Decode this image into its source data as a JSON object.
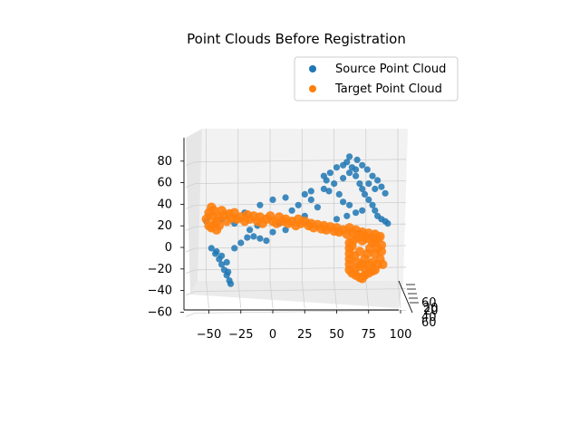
{
  "chart_data": {
    "type": "scatter",
    "projection": "3d",
    "title": "Point Clouds Before Registration",
    "legend": {
      "placement": "top-right"
    },
    "grid": true,
    "axes": {
      "x": {
        "label": "",
        "range": [
          -65,
          100
        ],
        "ticks": [
          -50,
          -25,
          0,
          25,
          50,
          75,
          100
        ]
      },
      "y": {
        "label": "",
        "range": [
          -70,
          70
        ],
        "ticks": [
          -60,
          -40,
          -20,
          0,
          20,
          40,
          60
        ]
      },
      "z": {
        "label": "",
        "range": [
          -65,
          90
        ],
        "ticks": [
          -60,
          -40,
          -20,
          0,
          20,
          40,
          60,
          80
        ]
      }
    },
    "series": [
      {
        "name": "Source Point Cloud",
        "color": "#1f77b4",
        "points": [
          [
            -48,
            0,
            -5
          ],
          [
            -45,
            0,
            -10
          ],
          [
            -42,
            0,
            -15
          ],
          [
            -40,
            0,
            -20
          ],
          [
            -38,
            0,
            -25
          ],
          [
            -36,
            0,
            -30
          ],
          [
            -34,
            0,
            -35
          ],
          [
            -33,
            0,
            -38
          ],
          [
            -35,
            0,
            -27
          ],
          [
            -30,
            0,
            -5
          ],
          [
            -25,
            0,
            0
          ],
          [
            -20,
            0,
            5
          ],
          [
            -15,
            0,
            6
          ],
          [
            -10,
            0,
            4
          ],
          [
            -5,
            0,
            2
          ],
          [
            0,
            0,
            10
          ],
          [
            5,
            0,
            18
          ],
          [
            10,
            0,
            12
          ],
          [
            15,
            0,
            30
          ],
          [
            20,
            0,
            35
          ],
          [
            25,
            0,
            25
          ],
          [
            30,
            0,
            40
          ],
          [
            35,
            0,
            33
          ],
          [
            40,
            0,
            50
          ],
          [
            42,
            0,
            58
          ],
          [
            45,
            0,
            65
          ],
          [
            50,
            0,
            70
          ],
          [
            55,
            0,
            72
          ],
          [
            58,
            0,
            75
          ],
          [
            60,
            0,
            80
          ],
          [
            62,
            0,
            70
          ],
          [
            65,
            0,
            62
          ],
          [
            68,
            0,
            55
          ],
          [
            70,
            0,
            50
          ],
          [
            72,
            0,
            45
          ],
          [
            75,
            0,
            40
          ],
          [
            78,
            0,
            35
          ],
          [
            80,
            0,
            30
          ],
          [
            82,
            0,
            25
          ],
          [
            85,
            0,
            22
          ],
          [
            88,
            0,
            20
          ],
          [
            90,
            0,
            18
          ],
          [
            60,
            0,
            35
          ],
          [
            55,
            0,
            38
          ],
          [
            52,
            0,
            45
          ],
          [
            48,
            0,
            55
          ],
          [
            44,
            0,
            48
          ],
          [
            40,
            0,
            62
          ],
          [
            66,
            0,
            77
          ],
          [
            70,
            0,
            72
          ],
          [
            74,
            0,
            68
          ],
          [
            78,
            0,
            62
          ],
          [
            82,
            0,
            58
          ],
          [
            85,
            0,
            52
          ],
          [
            88,
            0,
            46
          ],
          [
            70,
            0,
            30
          ],
          [
            65,
            0,
            28
          ],
          [
            58,
            0,
            25
          ],
          [
            50,
            0,
            22
          ],
          [
            -52,
            0,
            20
          ],
          [
            -50,
            0,
            25
          ],
          [
            -46,
            0,
            18
          ],
          [
            -40,
            0,
            22
          ],
          [
            -30,
            0,
            18
          ],
          [
            -22,
            0,
            28
          ],
          [
            -10,
            0,
            35
          ],
          [
            0,
            0,
            40
          ],
          [
            10,
            0,
            42
          ],
          [
            25,
            0,
            45
          ],
          [
            30,
            0,
            48
          ],
          [
            -18,
            0,
            12
          ],
          [
            -12,
            0,
            16
          ],
          [
            -44,
            0,
            -8
          ],
          [
            -40,
            0,
            -12
          ],
          [
            -36,
            0,
            -18
          ],
          [
            55,
            0,
            60
          ],
          [
            60,
            0,
            65
          ],
          [
            65,
            0,
            68
          ],
          [
            75,
            0,
            55
          ],
          [
            80,
            0,
            50
          ]
        ]
      },
      {
        "name": "Target Point Cloud",
        "color": "#ff7f0e",
        "points": [
          [
            -52,
            0,
            22
          ],
          [
            -50,
            0,
            28
          ],
          [
            -48,
            0,
            33
          ],
          [
            -47,
            0,
            25
          ],
          [
            -45,
            0,
            18
          ],
          [
            -44,
            0,
            12
          ],
          [
            -42,
            0,
            24
          ],
          [
            -40,
            0,
            30
          ],
          [
            -38,
            0,
            26
          ],
          [
            -36,
            0,
            20
          ],
          [
            -34,
            0,
            27
          ],
          [
            -32,
            0,
            23
          ],
          [
            -30,
            0,
            28
          ],
          [
            -28,
            0,
            22
          ],
          [
            -25,
            0,
            24
          ],
          [
            -22,
            0,
            20
          ],
          [
            -20,
            0,
            26
          ],
          [
            -18,
            0,
            22
          ],
          [
            -15,
            0,
            25
          ],
          [
            -12,
            0,
            20
          ],
          [
            -10,
            0,
            24
          ],
          [
            -8,
            0,
            18
          ],
          [
            -5,
            0,
            22
          ],
          [
            -2,
            0,
            25
          ],
          [
            0,
            0,
            20
          ],
          [
            3,
            0,
            18
          ],
          [
            5,
            0,
            24
          ],
          [
            8,
            0,
            20
          ],
          [
            10,
            0,
            22
          ],
          [
            12,
            0,
            18
          ],
          [
            15,
            0,
            20
          ],
          [
            18,
            0,
            16
          ],
          [
            20,
            0,
            22
          ],
          [
            22,
            0,
            18
          ],
          [
            25,
            0,
            20
          ],
          [
            28,
            0,
            16
          ],
          [
            30,
            0,
            18
          ],
          [
            32,
            0,
            14
          ],
          [
            35,
            0,
            17
          ],
          [
            38,
            0,
            13
          ],
          [
            40,
            0,
            16
          ],
          [
            42,
            0,
            12
          ],
          [
            45,
            0,
            15
          ],
          [
            48,
            0,
            11
          ],
          [
            50,
            0,
            14
          ],
          [
            52,
            0,
            10
          ],
          [
            55,
            0,
            12
          ],
          [
            58,
            0,
            8
          ],
          [
            60,
            0,
            14
          ],
          [
            62,
            0,
            10
          ],
          [
            65,
            0,
            12
          ],
          [
            68,
            0,
            8
          ],
          [
            70,
            0,
            10
          ],
          [
            72,
            0,
            6
          ],
          [
            75,
            0,
            9
          ],
          [
            78,
            0,
            5
          ],
          [
            80,
            0,
            8
          ],
          [
            82,
            0,
            4
          ],
          [
            84,
            0,
            6
          ],
          [
            60,
            0,
            0
          ],
          [
            60,
            0,
            -5
          ],
          [
            60,
            0,
            -10
          ],
          [
            60,
            0,
            -15
          ],
          [
            60,
            0,
            -20
          ],
          [
            60,
            0,
            -25
          ],
          [
            62,
            0,
            -28
          ],
          [
            65,
            0,
            -30
          ],
          [
            68,
            0,
            -32
          ],
          [
            70,
            0,
            -33
          ],
          [
            72,
            0,
            -30
          ],
          [
            75,
            0,
            -28
          ],
          [
            78,
            0,
            -26
          ],
          [
            80,
            0,
            -25
          ],
          [
            82,
            0,
            -20
          ],
          [
            84,
            0,
            -15
          ],
          [
            85,
            0,
            -8
          ],
          [
            85,
            0,
            -2
          ],
          [
            62,
            0,
            -3
          ],
          [
            64,
            0,
            -12
          ],
          [
            66,
            0,
            -18
          ],
          [
            68,
            0,
            -22
          ],
          [
            70,
            0,
            -20
          ],
          [
            72,
            0,
            -15
          ],
          [
            74,
            0,
            -10
          ],
          [
            76,
            0,
            -5
          ],
          [
            78,
            0,
            0
          ],
          [
            80,
            0,
            -10
          ],
          [
            82,
            0,
            -5
          ],
          [
            66,
            0,
            5
          ],
          [
            70,
            0,
            2
          ],
          [
            74,
            0,
            4
          ],
          [
            78,
            0,
            -18
          ],
          [
            73,
            0,
            -25
          ],
          [
            64,
            0,
            -25
          ],
          [
            86,
            0,
            -20
          ],
          [
            63,
            0,
            2
          ],
          [
            68,
            0,
            -8
          ],
          [
            75,
            0,
            -20
          ],
          [
            80,
            0,
            2
          ],
          [
            -48,
            0,
            14
          ],
          [
            -46,
            0,
            30
          ],
          [
            -44,
            0,
            20
          ],
          [
            -42,
            0,
            16
          ],
          [
            -50,
            0,
            16
          ]
        ]
      }
    ]
  }
}
